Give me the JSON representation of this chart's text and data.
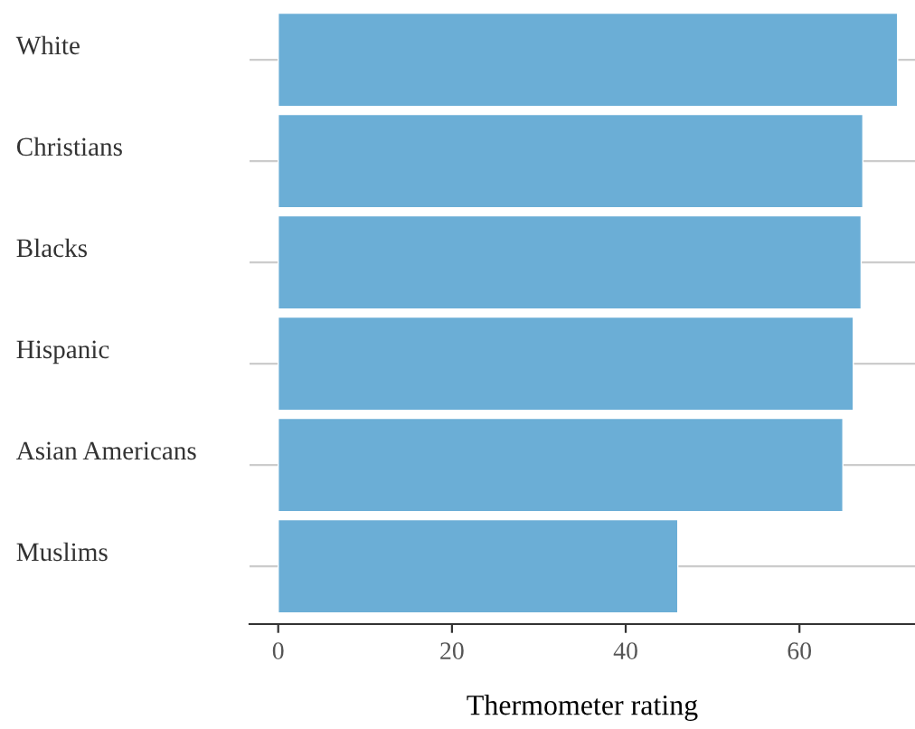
{
  "chart_data": {
    "type": "bar",
    "orientation": "horizontal",
    "xlabel": "Thermometer rating",
    "categories": [
      "White",
      "Christians",
      "Blacks",
      "Hispanic",
      "Asian Americans",
      "Muslims"
    ],
    "values": [
      71.3,
      67.3,
      67.1,
      66.2,
      65.0,
      46.0
    ],
    "color": "#6baed6",
    "xlim": [
      -3.3,
      73.3
    ],
    "xticks": [
      0,
      20,
      40,
      60
    ],
    "grid": "y",
    "legend": false
  }
}
